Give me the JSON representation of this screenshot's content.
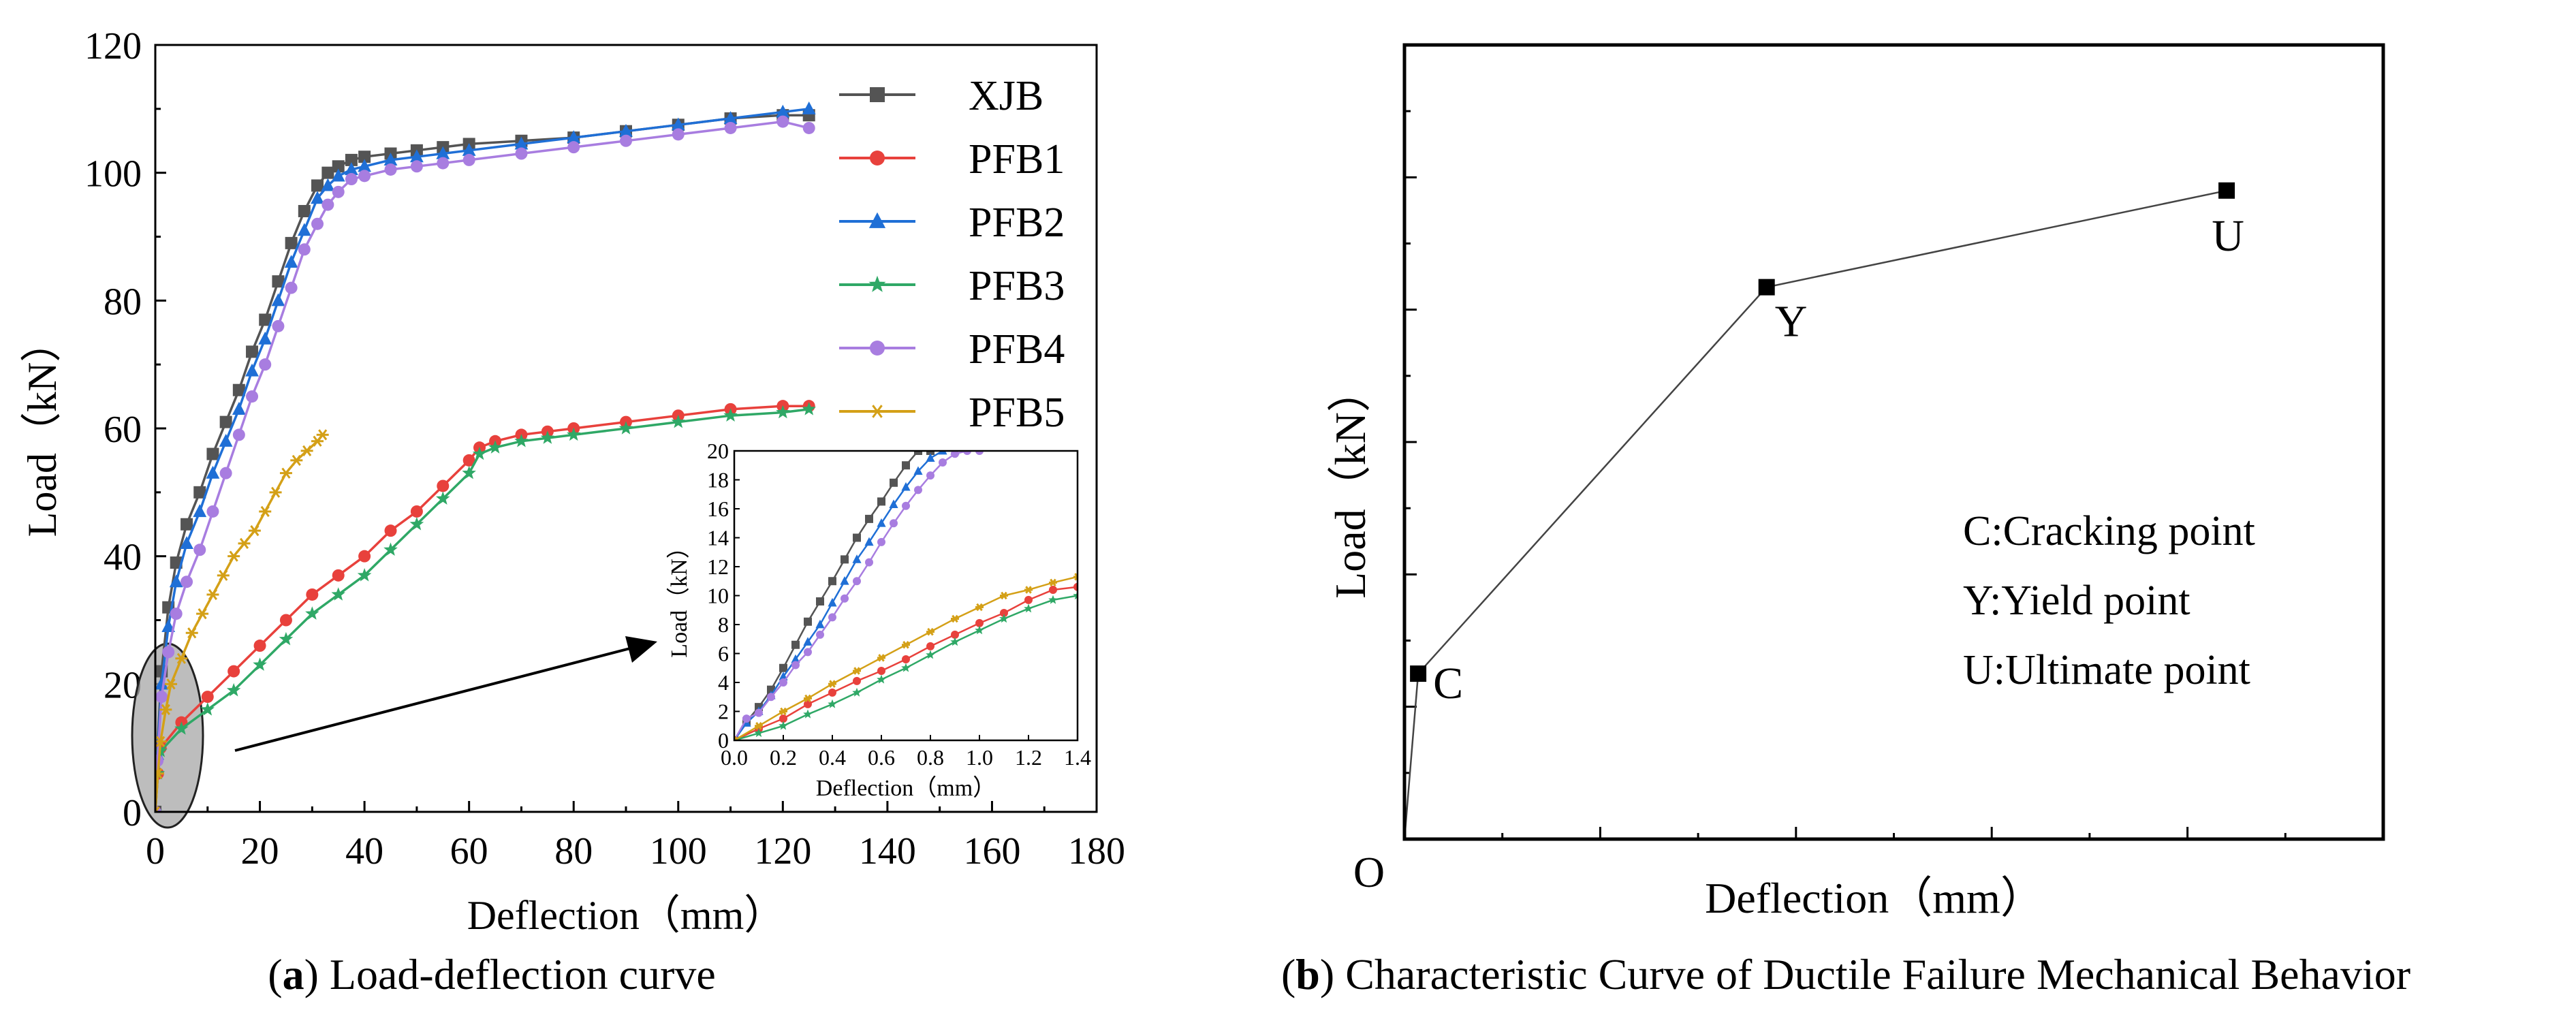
{
  "panels": {
    "a": {
      "letter": "a",
      "caption": "Load-deflection curve"
    },
    "b": {
      "letter": "b",
      "caption": "Characteristic Curve of Ductile Failure Mechanical Behavior"
    }
  },
  "chart_data": [
    {
      "id": "a-main",
      "type": "line",
      "xlabel": "Deflection（mm）",
      "ylabel": "Load（kN）",
      "xlim": [
        0,
        180
      ],
      "ylim": [
        0,
        120
      ],
      "xticks": [
        0,
        20,
        40,
        60,
        80,
        100,
        120,
        140,
        160,
        180
      ],
      "yticks": [
        0,
        20,
        40,
        60,
        80,
        100,
        120
      ],
      "legend_position": "top-right",
      "series": [
        {
          "name": "XJB",
          "color": "#545454",
          "marker": "square",
          "x": [
            0,
            0.4,
            1.2,
            2.5,
            4,
            6,
            8.5,
            11,
            13.5,
            16,
            18.5,
            21,
            23.5,
            26,
            28.5,
            31,
            33,
            35,
            37.5,
            40,
            45,
            50,
            55,
            60,
            70,
            80,
            90,
            100,
            110,
            120,
            125
          ],
          "y": [
            0,
            10,
            22,
            32,
            39,
            45,
            50,
            56,
            61,
            66,
            72,
            77,
            83,
            89,
            94,
            98,
            100,
            101,
            102,
            102.5,
            103,
            103.5,
            104,
            104.5,
            105,
            105.5,
            106.5,
            107.5,
            108.5,
            109,
            109
          ]
        },
        {
          "name": "PFB1",
          "color": "#e8413c",
          "marker": "circle",
          "x": [
            0,
            0.5,
            1,
            5,
            10,
            15,
            20,
            25,
            30,
            35,
            40,
            45,
            50,
            55,
            60,
            62,
            65,
            70,
            75,
            80,
            90,
            100,
            110,
            120,
            125
          ],
          "y": [
            0,
            6,
            10,
            14,
            18,
            22,
            26,
            30,
            34,
            37,
            40,
            44,
            47,
            51,
            55,
            57,
            58,
            59,
            59.5,
            60,
            61,
            62,
            63,
            63.5,
            63.5
          ]
        },
        {
          "name": "PFB2",
          "color": "#1f6fd6",
          "marker": "triangle",
          "x": [
            0,
            0.4,
            1.2,
            2.5,
            4,
            6,
            8.5,
            11,
            13.5,
            16,
            18.5,
            21,
            23.5,
            26,
            28.5,
            31,
            33,
            35,
            37.5,
            40,
            45,
            50,
            55,
            60,
            70,
            80,
            90,
            100,
            110,
            120,
            125
          ],
          "y": [
            0,
            9,
            20,
            29,
            36,
            42,
            47,
            53,
            58,
            63,
            69,
            74,
            80,
            86,
            91,
            96,
            98,
            99.5,
            100.5,
            101,
            102,
            102.5,
            103,
            103.5,
            104.5,
            105.5,
            106.5,
            107.5,
            108.5,
            109.5,
            110
          ]
        },
        {
          "name": "PFB3",
          "color": "#2fa866",
          "marker": "star",
          "x": [
            0,
            0.5,
            1,
            5,
            10,
            15,
            20,
            25,
            30,
            35,
            40,
            45,
            50,
            55,
            60,
            62,
            65,
            70,
            75,
            80,
            90,
            100,
            110,
            120,
            125
          ],
          "y": [
            0,
            6,
            9.5,
            13,
            16,
            19,
            23,
            27,
            31,
            34,
            37,
            41,
            45,
            49,
            53,
            56,
            57,
            58,
            58.5,
            59,
            60,
            61,
            62,
            62.5,
            63
          ]
        },
        {
          "name": "PFB4",
          "color": "#a87de0",
          "marker": "circle",
          "x": [
            0,
            0.4,
            1.2,
            2.5,
            4,
            6,
            8.5,
            11,
            13.5,
            16,
            18.5,
            21,
            23.5,
            26,
            28.5,
            31,
            33,
            35,
            37.5,
            40,
            45,
            50,
            55,
            60,
            70,
            80,
            90,
            100,
            110,
            120,
            125
          ],
          "y": [
            0,
            8,
            18,
            25,
            31,
            36,
            41,
            47,
            53,
            59,
            65,
            70,
            76,
            82,
            88,
            92,
            95,
            97,
            99,
            99.5,
            100.5,
            101,
            101.5,
            102,
            103,
            104,
            105,
            106,
            107,
            108,
            107
          ]
        },
        {
          "name": "PFB5",
          "color": "#d4a017",
          "marker": "asterisk",
          "x": [
            0,
            0.5,
            1,
            2,
            3,
            5,
            7,
            9,
            11,
            13,
            15,
            17,
            19,
            21,
            23,
            25,
            27,
            29,
            31,
            32
          ],
          "y": [
            0,
            6,
            11,
            16,
            20,
            24,
            28,
            31,
            34,
            37,
            40,
            42,
            44,
            47,
            50,
            53,
            55,
            56.5,
            58,
            59
          ]
        }
      ]
    },
    {
      "id": "a-inset",
      "type": "line",
      "xlabel": "Deflection（mm）",
      "ylabel": "Load（kN）",
      "xlim": [
        0,
        1.4
      ],
      "ylim": [
        0,
        20
      ],
      "xticks": [
        0.0,
        0.2,
        0.4,
        0.6,
        0.8,
        1.0,
        1.2,
        1.4
      ],
      "yticks": [
        0,
        2,
        4,
        6,
        8,
        10,
        12,
        14,
        16,
        18,
        20
      ],
      "series": [
        {
          "name": "XJB",
          "color": "#545454",
          "marker": "square",
          "x": [
            0,
            0.05,
            0.1,
            0.15,
            0.2,
            0.25,
            0.3,
            0.35,
            0.4,
            0.45,
            0.5,
            0.55,
            0.6,
            0.65,
            0.7,
            0.75,
            0.8
          ],
          "y": [
            0,
            1.3,
            2.3,
            3.5,
            5,
            6.6,
            8.2,
            9.6,
            11,
            12.5,
            14,
            15.3,
            16.5,
            17.8,
            19,
            20,
            20
          ]
        },
        {
          "name": "PFB2",
          "color": "#1f6fd6",
          "marker": "triangle",
          "x": [
            0,
            0.05,
            0.1,
            0.15,
            0.2,
            0.25,
            0.3,
            0.35,
            0.4,
            0.45,
            0.5,
            0.55,
            0.6,
            0.65,
            0.7,
            0.75,
            0.8,
            0.85,
            0.9
          ],
          "y": [
            0,
            1.2,
            2,
            3.1,
            4.4,
            5.6,
            6.8,
            8,
            9.5,
            11,
            12.5,
            13.7,
            15,
            16.3,
            17.5,
            18.6,
            19.5,
            20,
            20
          ]
        },
        {
          "name": "PFB4",
          "color": "#a87de0",
          "marker": "circle",
          "x": [
            0,
            0.05,
            0.1,
            0.15,
            0.2,
            0.25,
            0.3,
            0.35,
            0.4,
            0.45,
            0.5,
            0.55,
            0.6,
            0.65,
            0.7,
            0.75,
            0.8,
            0.85,
            0.9,
            0.95,
            1.0
          ],
          "y": [
            0,
            1.5,
            1.9,
            3,
            4,
            5.2,
            6.1,
            7.3,
            8.5,
            9.8,
            11,
            12.3,
            13.7,
            15,
            16.2,
            17.3,
            18.3,
            19.2,
            19.8,
            20,
            20
          ]
        },
        {
          "name": "PFB1",
          "color": "#e8413c",
          "marker": "circle",
          "x": [
            0,
            0.1,
            0.2,
            0.3,
            0.4,
            0.5,
            0.6,
            0.7,
            0.8,
            0.9,
            1.0,
            1.1,
            1.2,
            1.3,
            1.4
          ],
          "y": [
            0,
            0.8,
            1.5,
            2.5,
            3.3,
            4.1,
            4.8,
            5.6,
            6.5,
            7.3,
            8.1,
            8.8,
            9.7,
            10.4,
            10.6
          ]
        },
        {
          "name": "PFB3",
          "color": "#2fa866",
          "marker": "star",
          "x": [
            0,
            0.1,
            0.2,
            0.3,
            0.4,
            0.5,
            0.6,
            0.7,
            0.8,
            0.9,
            1.0,
            1.1,
            1.2,
            1.3,
            1.4
          ],
          "y": [
            0,
            0.5,
            1,
            1.8,
            2.5,
            3.3,
            4.2,
            5,
            5.9,
            6.8,
            7.6,
            8.4,
            9.1,
            9.7,
            10
          ]
        },
        {
          "name": "PFB5",
          "color": "#d4a017",
          "marker": "asterisk",
          "x": [
            0,
            0.1,
            0.2,
            0.3,
            0.4,
            0.5,
            0.6,
            0.7,
            0.8,
            0.9,
            1.0,
            1.1,
            1.2,
            1.3,
            1.4
          ],
          "y": [
            0,
            1,
            2,
            2.9,
            3.9,
            4.8,
            5.7,
            6.6,
            7.5,
            8.4,
            9.2,
            10,
            10.4,
            10.9,
            11.3
          ]
        }
      ]
    },
    {
      "id": "b",
      "type": "line",
      "xlabel": "Deflection（mm）",
      "ylabel": "Load（kN）",
      "xlim": [
        0,
        5
      ],
      "ylim": [
        0,
        6
      ],
      "origin_label": "O",
      "points": [
        {
          "label": "O",
          "x": 0,
          "y": 0,
          "marker": false
        },
        {
          "label": "C",
          "x": 0.07,
          "y": 1.25,
          "marker": true
        },
        {
          "label": "Y",
          "x": 1.85,
          "y": 4.17,
          "marker": true
        },
        {
          "label": "U",
          "x": 4.2,
          "y": 4.9,
          "marker": true
        }
      ],
      "annotations": [
        "C:Cracking point",
        "Y:Yield point",
        "U:Ultimate point"
      ]
    }
  ]
}
